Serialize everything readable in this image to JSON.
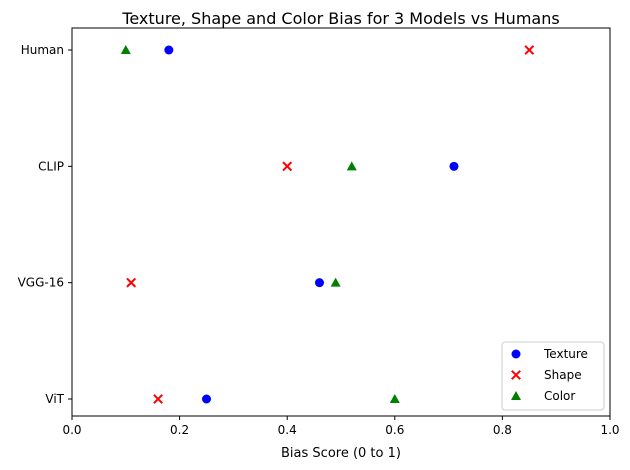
{
  "chart_data": {
    "type": "scatter",
    "title": "Texture, Shape and Color Bias for 3 Models vs Humans",
    "xlabel": "Bias Score (0 to 1)",
    "ylabel": "",
    "xlim": [
      0,
      1
    ],
    "x_ticks": [
      "0.0",
      "0.2",
      "0.4",
      "0.6",
      "0.8",
      "1.0"
    ],
    "categories": [
      "ViT",
      "VGG-16",
      "CLIP",
      "Human"
    ],
    "grid": false,
    "legend_position": "bottom-right",
    "series": [
      {
        "name": "Texture",
        "marker": "circle",
        "color": "#0000ff",
        "values": [
          0.25,
          0.46,
          0.71,
          0.18
        ]
      },
      {
        "name": "Shape",
        "marker": "x",
        "color": "#ff0000",
        "values": [
          0.16,
          0.11,
          0.4,
          0.85
        ]
      },
      {
        "name": "Color",
        "marker": "triangle",
        "color": "#008000",
        "values": [
          0.6,
          0.49,
          0.52,
          0.1
        ]
      }
    ]
  }
}
